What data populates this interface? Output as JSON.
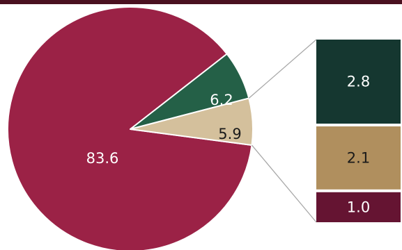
{
  "chart_data": {
    "type": "pie",
    "slices": [
      {
        "value": 83.6,
        "label": "83.6",
        "color": "#9b2246",
        "label_color": "#ffffff"
      },
      {
        "value": 6.2,
        "label": "6.2",
        "color": "#246047",
        "label_color": "#ffffff"
      },
      {
        "value": 5.9,
        "label": "5.9",
        "color": "#d4c09c",
        "label_color": "#1a1a1a"
      }
    ],
    "breakout": {
      "of_slice": "5.9",
      "segments": [
        {
          "value": 2.8,
          "label": "2.8",
          "color": "#153730",
          "label_color": "#ffffff"
        },
        {
          "value": 2.1,
          "label": "2.1",
          "color": "#b08f5e",
          "label_color": "#1a1a1a"
        },
        {
          "value": 1.0,
          "label": "1.0",
          "color": "#651432",
          "label_color": "#ffffff"
        }
      ]
    },
    "colors": {
      "top_bar": "#4a1020",
      "connector": "#a8a8a8"
    }
  }
}
